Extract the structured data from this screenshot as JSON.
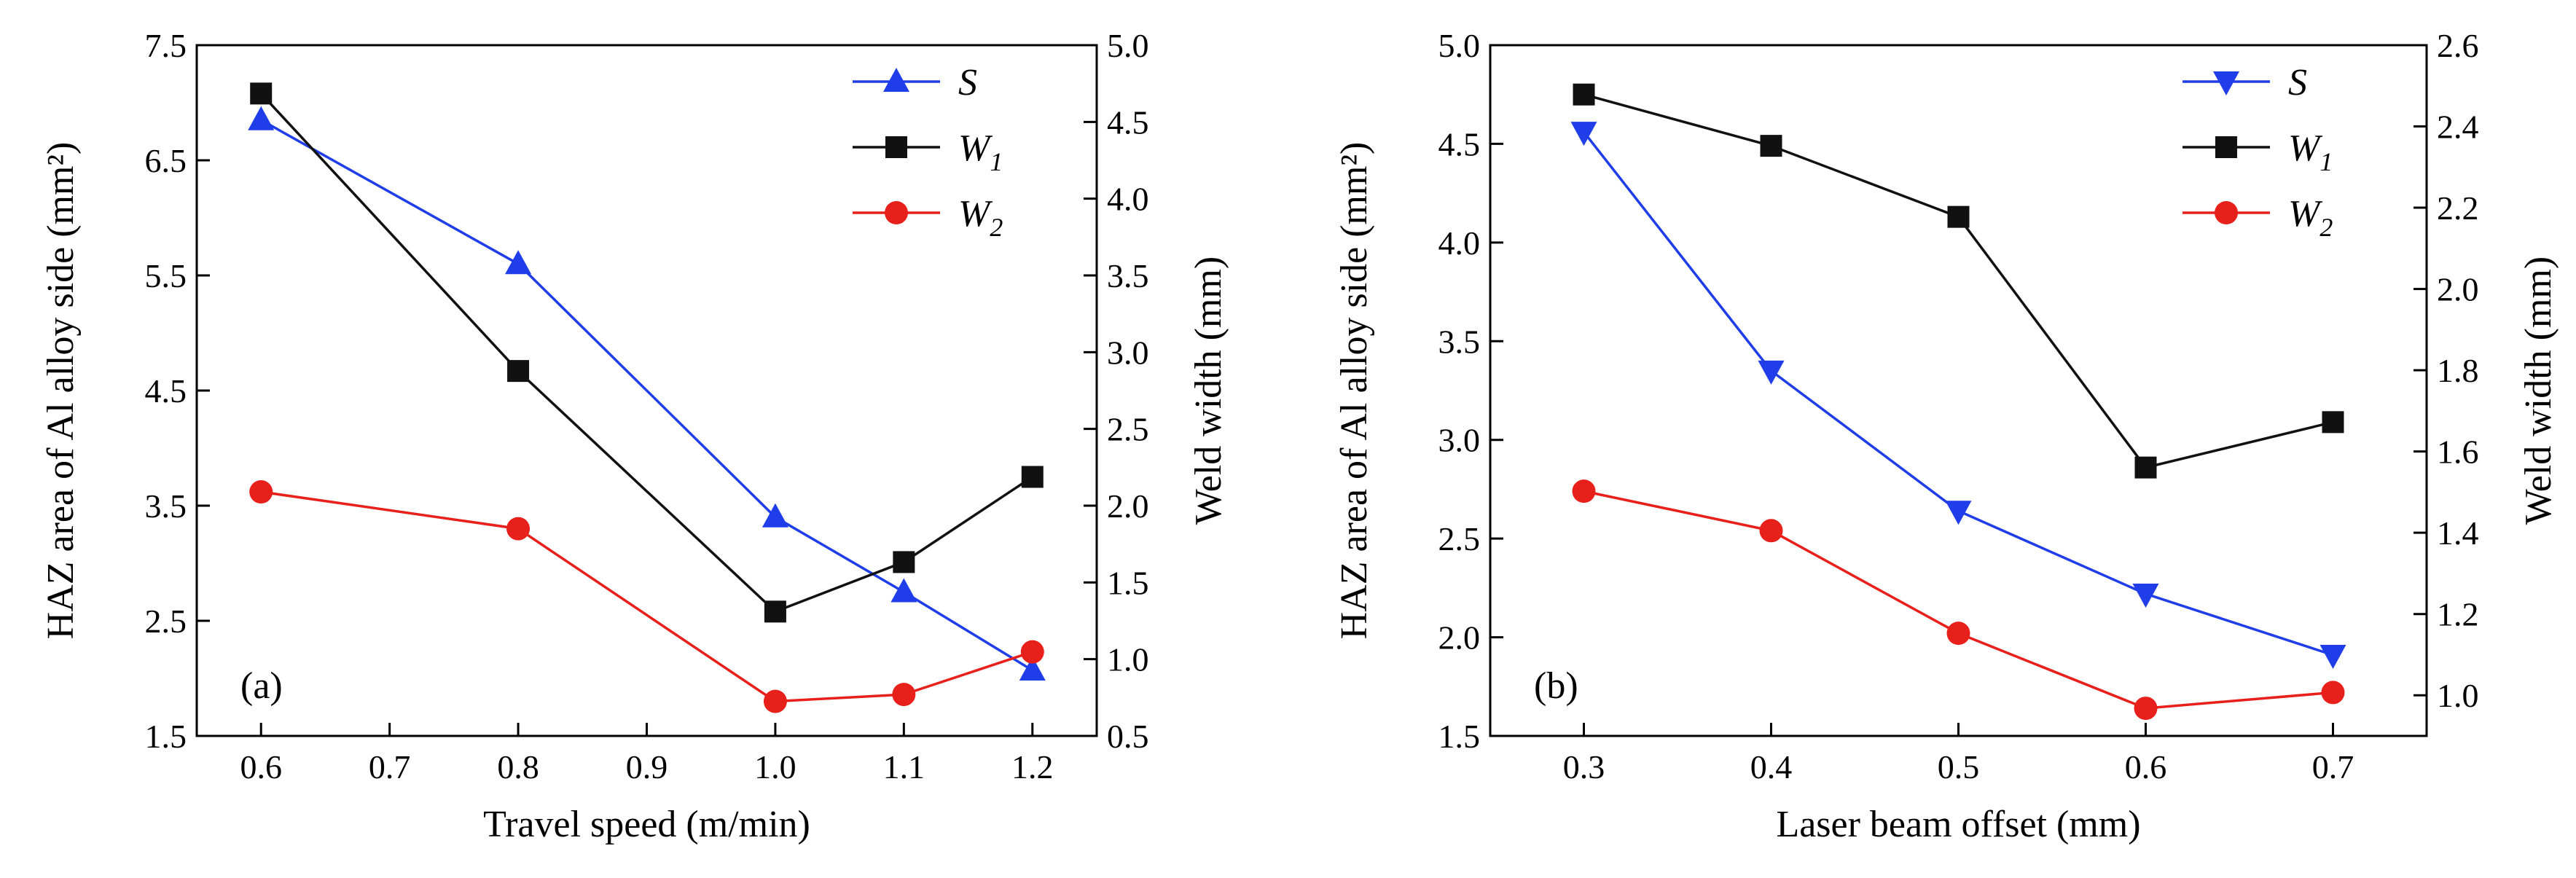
{
  "chart_data": [
    {
      "type": "line",
      "panel_label": "(a)",
      "xlabel": "Travel speed (m/min)",
      "ylabel_left": "HAZ area of Al alloy side (mm²)",
      "ylabel_right": "Weld width (mm)",
      "xlim": [
        0.55,
        1.25
      ],
      "ylim_left": [
        1.5,
        7.5
      ],
      "ylim_right": [
        0.5,
        5.0
      ],
      "x_ticks": [
        "0.6",
        "0.7",
        "0.8",
        "0.9",
        "1.0",
        "1.1",
        "1.2"
      ],
      "y_left_ticks": [
        "1.5",
        "2.5",
        "3.5",
        "4.5",
        "5.5",
        "6.5",
        "7.5"
      ],
      "y_right_ticks": [
        "0.5",
        "1.0",
        "1.5",
        "2.0",
        "2.5",
        "3.0",
        "3.5",
        "4.0",
        "4.5",
        "5.0"
      ],
      "legend_position": "top-right",
      "series": [
        {
          "name": "S",
          "axis": "left",
          "color": "#1f3de8",
          "marker": "triangle-up",
          "x": [
            0.6,
            0.8,
            1.0,
            1.1,
            1.2
          ],
          "values": [
            6.85,
            5.6,
            3.4,
            2.75,
            2.07
          ]
        },
        {
          "name": "W",
          "sub": "1",
          "axis": "left",
          "color": "#111111",
          "marker": "square",
          "x": [
            0.6,
            0.8,
            1.0,
            1.1,
            1.2
          ],
          "values": [
            7.08,
            4.67,
            2.58,
            3.01,
            3.75
          ]
        },
        {
          "name": "W",
          "sub": "2",
          "axis": "left",
          "color": "#e8201b",
          "marker": "circle",
          "x": [
            0.6,
            0.8,
            1.0,
            1.1,
            1.2
          ],
          "values": [
            3.62,
            3.3,
            1.8,
            1.86,
            2.23
          ]
        }
      ]
    },
    {
      "type": "line",
      "panel_label": "(b)",
      "xlabel": "Laser beam offset (mm)",
      "ylabel_left": "HAZ area of Al alloy side (mm²)",
      "ylabel_right": "Weld width (mm)",
      "xlim": [
        0.25,
        0.75
      ],
      "ylim_left": [
        1.5,
        5.0
      ],
      "ylim_right": [
        0.9,
        2.6
      ],
      "x_ticks": [
        "0.3",
        "0.4",
        "0.5",
        "0.6",
        "0.7"
      ],
      "y_left_ticks": [
        "1.5",
        "2.0",
        "2.5",
        "3.0",
        "3.5",
        "4.0",
        "4.5",
        "5.0"
      ],
      "y_right_ticks": [
        "1.0",
        "1.2",
        "1.4",
        "1.6",
        "1.8",
        "2.0",
        "2.2",
        "2.4",
        "2.6"
      ],
      "legend_position": "top-right",
      "series": [
        {
          "name": "S",
          "axis": "left",
          "color": "#1f3de8",
          "marker": "triangle-down",
          "x": [
            0.3,
            0.4,
            0.5,
            0.6,
            0.7
          ],
          "values": [
            4.56,
            3.35,
            2.64,
            2.22,
            1.91
          ]
        },
        {
          "name": "W",
          "sub": "1",
          "axis": "left",
          "color": "#111111",
          "marker": "square",
          "x": [
            0.3,
            0.4,
            0.5,
            0.6,
            0.7
          ],
          "values": [
            4.75,
            4.49,
            4.13,
            2.86,
            3.09
          ]
        },
        {
          "name": "W",
          "sub": "2",
          "axis": "left",
          "color": "#e8201b",
          "marker": "circle",
          "x": [
            0.3,
            0.4,
            0.5,
            0.6,
            0.7
          ],
          "values": [
            2.74,
            2.54,
            2.02,
            1.64,
            1.72
          ]
        }
      ]
    }
  ]
}
